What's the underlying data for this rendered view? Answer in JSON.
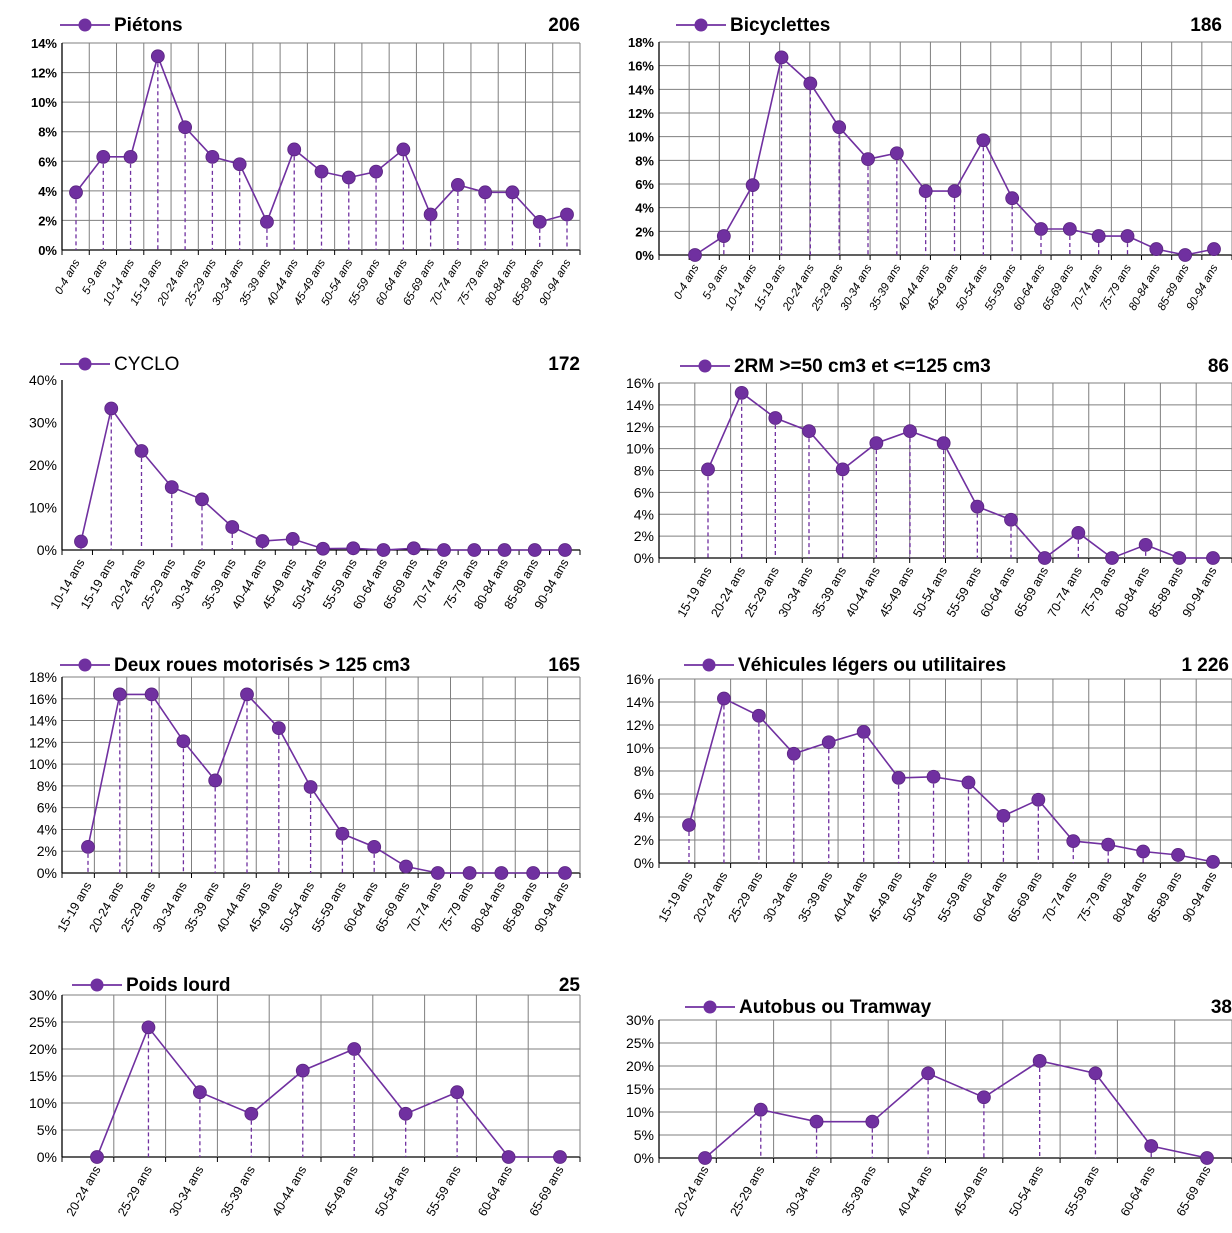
{
  "style": {
    "line_color": "#7030A0",
    "grid_color": "#7f7f7f",
    "axis_color": "#000000"
  },
  "chart_data": [
    {
      "type": "line",
      "title": "Piétons",
      "title_bold": true,
      "total": "206",
      "categories": [
        "0-4 ans",
        "5-9 ans",
        "10-14 ans",
        "15-19 ans",
        "20-24 ans",
        "25-29 ans",
        "30-34 ans",
        "35-39 ans",
        "40-44 ans",
        "45-49 ans",
        "50-54 ans",
        "55-59 ans",
        "60-64 ans",
        "65-69 ans",
        "70-74 ans",
        "75-79 ans",
        "80-84 ans",
        "85-89 ans",
        "90-94 ans"
      ],
      "values": [
        3.9,
        6.3,
        6.3,
        13.1,
        8.3,
        6.3,
        5.8,
        1.9,
        6.8,
        5.3,
        4.9,
        5.3,
        6.8,
        2.4,
        4.4,
        3.9,
        3.9,
        1.9,
        2.4
      ],
      "ylim": [
        0,
        14
      ],
      "ystep": 2,
      "ytick_suffix": "%",
      "tick_labels_bold": true,
      "xlabel_italic": true,
      "grid": true
    },
    {
      "type": "line",
      "title": "Bicyclettes",
      "title_bold": true,
      "total": "186",
      "categories": [
        "0-4 ans",
        "5-9 ans",
        "10-14 ans",
        "15-19 ans",
        "20-24 ans",
        "25-29 ans",
        "30-34 ans",
        "35-39 ans",
        "40-44 ans",
        "45-49 ans",
        "50-54 ans",
        "55-59 ans",
        "60-64 ans",
        "65-69 ans",
        "70-74 ans",
        "75-79 ans",
        "80-84 ans",
        "85-89 ans",
        "90-94 ans"
      ],
      "values": [
        0,
        1.6,
        5.9,
        16.7,
        14.5,
        10.8,
        8.1,
        8.6,
        5.4,
        5.4,
        9.7,
        4.8,
        2.2,
        2.2,
        1.6,
        1.6,
        0.5,
        0,
        0.5
      ],
      "ylim": [
        0,
        18
      ],
      "ystep": 2,
      "ytick_suffix": "%",
      "tick_labels_bold": true,
      "xlabel_italic": true,
      "grid": true
    },
    {
      "type": "line",
      "title": "CYCLO",
      "title_bold": false,
      "total": "172",
      "categories": [
        "10-14 ans",
        "15-19 ans",
        "20-24 ans",
        "25-29 ans",
        "30-34 ans",
        "35-39 ans",
        "40-44 ans",
        "45-49 ans",
        "50-54 ans",
        "55-59 ans",
        "60-64 ans",
        "65-69 ans",
        "70-74 ans",
        "75-79 ans",
        "80-84 ans",
        "85-89 ans",
        "90-94 ans"
      ],
      "values": [
        2,
        33.3,
        23.3,
        14.8,
        11.9,
        5.4,
        2.1,
        2.6,
        0.3,
        0.4,
        0,
        0.4,
        0,
        0,
        0,
        0,
        0
      ],
      "ylim": [
        0,
        40
      ],
      "ystep": 10,
      "ytick_suffix": "%",
      "tick_labels_bold": false,
      "xlabel_italic": false,
      "grid": false
    },
    {
      "type": "line",
      "title": "2RM  >=50 cm3 et <=125 cm3",
      "title_bold": true,
      "total": "86",
      "categories": [
        "15-19 ans",
        "20-24 ans",
        "25-29 ans",
        "30-34 ans",
        "35-39 ans",
        "40-44 ans",
        "45-49 ans",
        "50-54 ans",
        "55-59 ans",
        "60-64 ans",
        "65-69 ans",
        "70-74 ans",
        "75-79 ans",
        "80-84 ans",
        "85-89 ans",
        "90-94 ans"
      ],
      "values": [
        8.1,
        15.1,
        12.8,
        11.6,
        8.1,
        10.5,
        11.6,
        10.5,
        4.7,
        3.5,
        0,
        2.3,
        0,
        1.2,
        0,
        0
      ],
      "ylim": [
        0,
        16
      ],
      "ystep": 2,
      "ytick_suffix": "%",
      "tick_labels_bold": false,
      "xlabel_italic": false,
      "grid": true
    },
    {
      "type": "line",
      "title": "Deux roues motorisés > 125 cm3",
      "title_bold": true,
      "total": "165",
      "categories": [
        "15-19 ans",
        "20-24 ans",
        "25-29 ans",
        "30-34 ans",
        "35-39 ans",
        "40-44 ans",
        "45-49 ans",
        "50-54 ans",
        "55-59 ans",
        "60-64 ans",
        "65-69 ans",
        "70-74 ans",
        "75-79 ans",
        "80-84 ans",
        "85-89 ans",
        "90-94 ans"
      ],
      "values": [
        2.4,
        16.4,
        16.4,
        12.1,
        8.5,
        16.4,
        13.3,
        7.9,
        3.6,
        2.4,
        0.6,
        0,
        0,
        0,
        0,
        0
      ],
      "ylim": [
        0,
        18
      ],
      "ystep": 2,
      "ytick_suffix": "%",
      "tick_labels_bold": false,
      "xlabel_italic": false,
      "grid": true
    },
    {
      "type": "line",
      "title": "Véhicules légers ou utilitaires",
      "title_bold": true,
      "total": "1 226",
      "categories": [
        "15-19 ans",
        "20-24 ans",
        "25-29 ans",
        "30-34 ans",
        "35-39 ans",
        "40-44 ans",
        "45-49 ans",
        "50-54 ans",
        "55-59 ans",
        "60-64 ans",
        "65-69 ans",
        "70-74 ans",
        "75-79 ans",
        "80-84 ans",
        "85-89 ans",
        "90-94 ans"
      ],
      "values": [
        3.3,
        14.3,
        12.8,
        9.5,
        10.5,
        11.4,
        7.4,
        7.5,
        7,
        4.1,
        5.5,
        1.9,
        1.6,
        1,
        0.7,
        0.1
      ],
      "ylim": [
        0,
        16
      ],
      "ystep": 2,
      "ytick_suffix": "%",
      "tick_labels_bold": false,
      "xlabel_italic": false,
      "grid": true
    },
    {
      "type": "line",
      "title": "Poids lourd",
      "title_bold": true,
      "total": "25",
      "categories": [
        "20-24 ans",
        "25-29 ans",
        "30-34 ans",
        "35-39 ans",
        "40-44 ans",
        "45-49 ans",
        "50-54 ans",
        "55-59 ans",
        "60-64 ans",
        "65-69 ans"
      ],
      "values": [
        0,
        24,
        12,
        8,
        16,
        20,
        8,
        12,
        0,
        0
      ],
      "ylim": [
        0,
        30
      ],
      "ystep": 5,
      "ytick_suffix": "%",
      "tick_labels_bold": false,
      "xlabel_italic": false,
      "grid": true
    },
    {
      "type": "line",
      "title": "Autobus ou Tramway",
      "title_bold": true,
      "total": "38",
      "categories": [
        "20-24 ans",
        "25-29 ans",
        "30-34 ans",
        "35-39 ans",
        "40-44 ans",
        "45-49 ans",
        "50-54 ans",
        "55-59 ans",
        "60-64 ans",
        "65-69 ans"
      ],
      "values": [
        0,
        10.5,
        7.9,
        7.9,
        18.4,
        13.2,
        21.1,
        18.4,
        2.6,
        0
      ],
      "ylim": [
        0,
        30
      ],
      "ystep": 5,
      "ytick_suffix": "%",
      "tick_labels_bold": false,
      "xlabel_italic": false,
      "grid": true
    }
  ]
}
